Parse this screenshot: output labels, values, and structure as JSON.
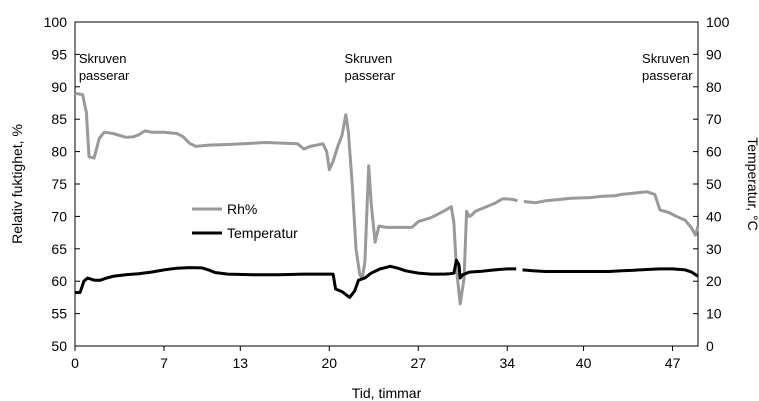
{
  "chart_data": {
    "type": "line",
    "title": "",
    "xlabel": "Tid, timmar",
    "ylabel_left": "Relativ fuktighet, %",
    "ylabel_right": "Temperatur, °C",
    "xlim": [
      0,
      49
    ],
    "ylim_left": [
      50,
      100
    ],
    "ylim_right": [
      0,
      100
    ],
    "x_ticks": [
      0,
      7,
      13,
      20,
      27,
      34,
      40,
      47
    ],
    "y_ticks_left": [
      50,
      55,
      60,
      65,
      70,
      75,
      80,
      85,
      90,
      95,
      100
    ],
    "y_ticks_right": [
      0,
      10,
      20,
      30,
      40,
      50,
      60,
      70,
      80,
      90,
      100
    ],
    "grid": false,
    "legend_placement": "center-left",
    "annotations": [
      {
        "text": "Skruven passerar",
        "x": 0.3
      },
      {
        "text": "Skruven passerar",
        "x": 21.2
      },
      {
        "text": "Skruven passerar",
        "x": 44.6
      }
    ],
    "series": [
      {
        "name": "Rh%",
        "axis": "left",
        "color": "#999999",
        "segments": [
          [
            [
              0,
              89
            ],
            [
              0.6,
              88.8
            ],
            [
              0.9,
              86
            ],
            [
              1.1,
              79.2
            ],
            [
              1.5,
              79
            ],
            [
              1.9,
              82
            ],
            [
              2.3,
              83
            ],
            [
              3,
              82.8
            ],
            [
              4,
              82.2
            ],
            [
              4.6,
              82.3
            ],
            [
              5,
              82.6
            ],
            [
              5.5,
              83.2
            ],
            [
              6,
              83
            ],
            [
              7,
              83
            ],
            [
              8,
              82.8
            ],
            [
              8.5,
              82.3
            ],
            [
              9,
              81.3
            ],
            [
              9.5,
              80.8
            ],
            [
              10.5,
              81
            ],
            [
              12,
              81.1
            ],
            [
              14,
              81.3
            ],
            [
              15,
              81.4
            ],
            [
              16.5,
              81.3
            ],
            [
              17.5,
              81.2
            ],
            [
              18,
              80.4
            ],
            [
              18.5,
              80.8
            ],
            [
              19.5,
              81.2
            ],
            [
              19.8,
              80
            ],
            [
              20,
              77.2
            ],
            [
              20.3,
              78.5
            ],
            [
              20.7,
              81
            ],
            [
              21,
              82.5
            ],
            [
              21.3,
              85.7
            ],
            [
              21.5,
              83
            ],
            [
              21.8,
              75
            ],
            [
              22.1,
              65
            ],
            [
              22.4,
              61
            ],
            [
              22.6,
              60.5
            ],
            [
              22.8,
              63
            ],
            [
              23.1,
              77.8
            ],
            [
              23.3,
              72
            ],
            [
              23.6,
              66
            ],
            [
              23.9,
              68.5
            ],
            [
              24.5,
              68.3
            ],
            [
              25.5,
              68.3
            ],
            [
              26.5,
              68.3
            ],
            [
              27,
              69.2
            ],
            [
              28,
              69.8
            ],
            [
              29,
              70.8
            ],
            [
              29.6,
              71.5
            ],
            [
              29.8,
              69
            ],
            [
              30,
              62
            ],
            [
              30.3,
              56.5
            ],
            [
              30.6,
              60.5
            ],
            [
              30.8,
              70.8
            ],
            [
              31,
              70
            ],
            [
              31.2,
              70.2
            ],
            [
              31.5,
              70.8
            ],
            [
              32,
              71.2
            ],
            [
              33,
              72
            ],
            [
              33.6,
              72.7
            ],
            [
              34,
              72.7
            ],
            [
              34.5,
              72.6
            ],
            [
              34.8,
              72.4
            ]
          ],
          [
            [
              35.3,
              72.3
            ],
            [
              36.2,
              72.1
            ],
            [
              37,
              72.4
            ],
            [
              38,
              72.6
            ],
            [
              39,
              72.8
            ],
            [
              40.5,
              72.9
            ],
            [
              41.5,
              73.1
            ],
            [
              42.5,
              73.2
            ],
            [
              43,
              73.4
            ],
            [
              44,
              73.6
            ],
            [
              45,
              73.8
            ],
            [
              45.6,
              73.4
            ],
            [
              46,
              71
            ],
            [
              46.7,
              70.6
            ],
            [
              47.3,
              70
            ],
            [
              48,
              69.4
            ],
            [
              48.5,
              68.2
            ],
            [
              48.8,
              67.1
            ],
            [
              49,
              68.5
            ]
          ]
        ]
      },
      {
        "name": "Temperatur",
        "axis": "right",
        "color": "#000000",
        "segments": [
          [
            [
              0,
              16.5
            ],
            [
              0.4,
              16.5
            ],
            [
              0.7,
              20
            ],
            [
              1,
              21
            ],
            [
              1.5,
              20.3
            ],
            [
              2,
              20.3
            ],
            [
              2.5,
              21
            ],
            [
              3,
              21.5
            ],
            [
              4,
              22
            ],
            [
              5,
              22.3
            ],
            [
              6,
              22.8
            ],
            [
              7,
              23.5
            ],
            [
              8,
              24
            ],
            [
              9,
              24.2
            ],
            [
              10,
              24.1
            ],
            [
              10.5,
              23.5
            ],
            [
              11,
              22.7
            ],
            [
              12,
              22.2
            ],
            [
              14,
              22
            ],
            [
              16,
              22
            ],
            [
              18,
              22.2
            ],
            [
              19.5,
              22.2
            ],
            [
              20.3,
              22.2
            ],
            [
              20.5,
              17.6
            ],
            [
              21,
              16.8
            ],
            [
              21.6,
              15
            ],
            [
              22,
              17
            ],
            [
              22.3,
              20.3
            ],
            [
              22.8,
              21
            ],
            [
              23.3,
              22.5
            ],
            [
              24,
              23.8
            ],
            [
              24.8,
              24.6
            ],
            [
              25.4,
              24
            ],
            [
              26,
              23.2
            ],
            [
              27,
              22.5
            ],
            [
              28,
              22.2
            ],
            [
              29,
              22.2
            ],
            [
              29.5,
              22.3
            ],
            [
              29.8,
              22.5
            ],
            [
              30,
              26.5
            ],
            [
              30.2,
              25
            ],
            [
              30.3,
              21
            ],
            [
              30.5,
              22
            ],
            [
              31,
              22.8
            ],
            [
              32,
              23.1
            ],
            [
              33,
              23.5
            ],
            [
              34,
              23.8
            ],
            [
              34.7,
              23.8
            ]
          ],
          [
            [
              35.2,
              23.5
            ],
            [
              36,
              23.2
            ],
            [
              37,
              23
            ],
            [
              38,
              23
            ],
            [
              40,
              23
            ],
            [
              42,
              23
            ],
            [
              43,
              23.2
            ],
            [
              44,
              23.4
            ],
            [
              45,
              23.6
            ],
            [
              46,
              23.8
            ],
            [
              47,
              23.8
            ],
            [
              48,
              23.5
            ],
            [
              48.5,
              22.8
            ],
            [
              49,
              21.5
            ]
          ]
        ]
      }
    ]
  }
}
